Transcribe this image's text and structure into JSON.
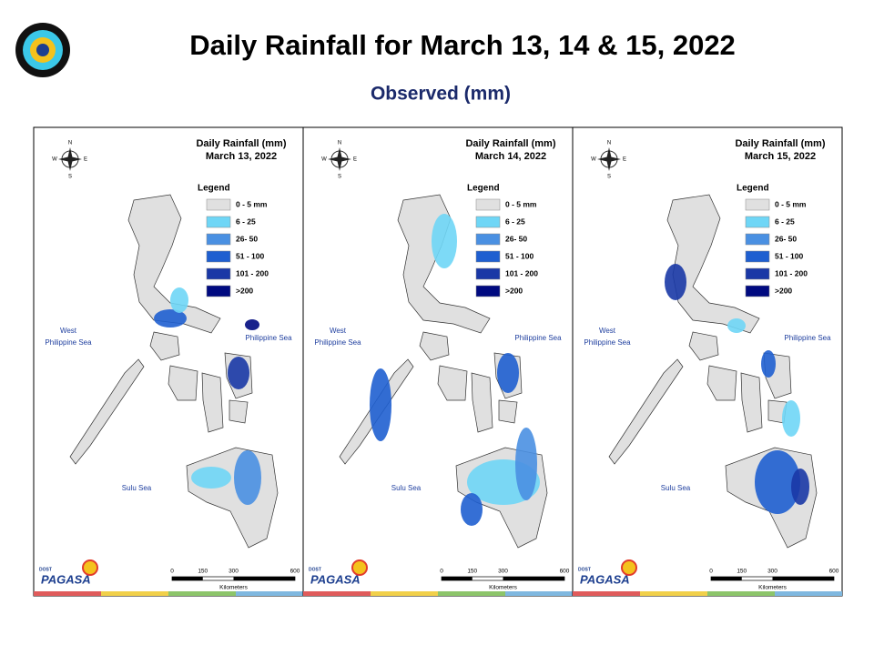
{
  "header": {
    "title": "Daily Rainfall for March 13, 14 & 15, 2022",
    "subtitle": "Observed (mm)"
  },
  "legend": {
    "title": "Legend",
    "items": [
      {
        "label": "0 - 5 mm",
        "color": "#e0e0e0"
      },
      {
        "label": "6 - 25",
        "color": "#6fd6f6"
      },
      {
        "label": "26- 50",
        "color": "#4a90e2"
      },
      {
        "label": "51 - 100",
        "color": "#1f5fd0"
      },
      {
        "label": "101 - 200",
        "color": "#1a38a6"
      },
      {
        "label": ">200",
        "color": "#000a80"
      }
    ]
  },
  "map_labels": {
    "west_sea": [
      "West",
      "Philippine Sea"
    ],
    "east_sea": "Philippine Sea",
    "sulu_sea": "Sulu Sea",
    "compass": [
      "N",
      "W",
      "E",
      "S"
    ]
  },
  "scale": {
    "ticks": [
      0,
      150,
      300,
      600
    ],
    "unit": "Kilometers"
  },
  "logo": {
    "dept": "DOST",
    "agency": "PAGASA"
  },
  "panels": [
    {
      "heading": "Daily Rainfall (mm)",
      "date": "March 13, 2022"
    },
    {
      "heading": "Daily Rainfall (mm)",
      "date": "March 14, 2022"
    },
    {
      "heading": "Daily Rainfall (mm)",
      "date": "March 15, 2022"
    }
  ]
}
